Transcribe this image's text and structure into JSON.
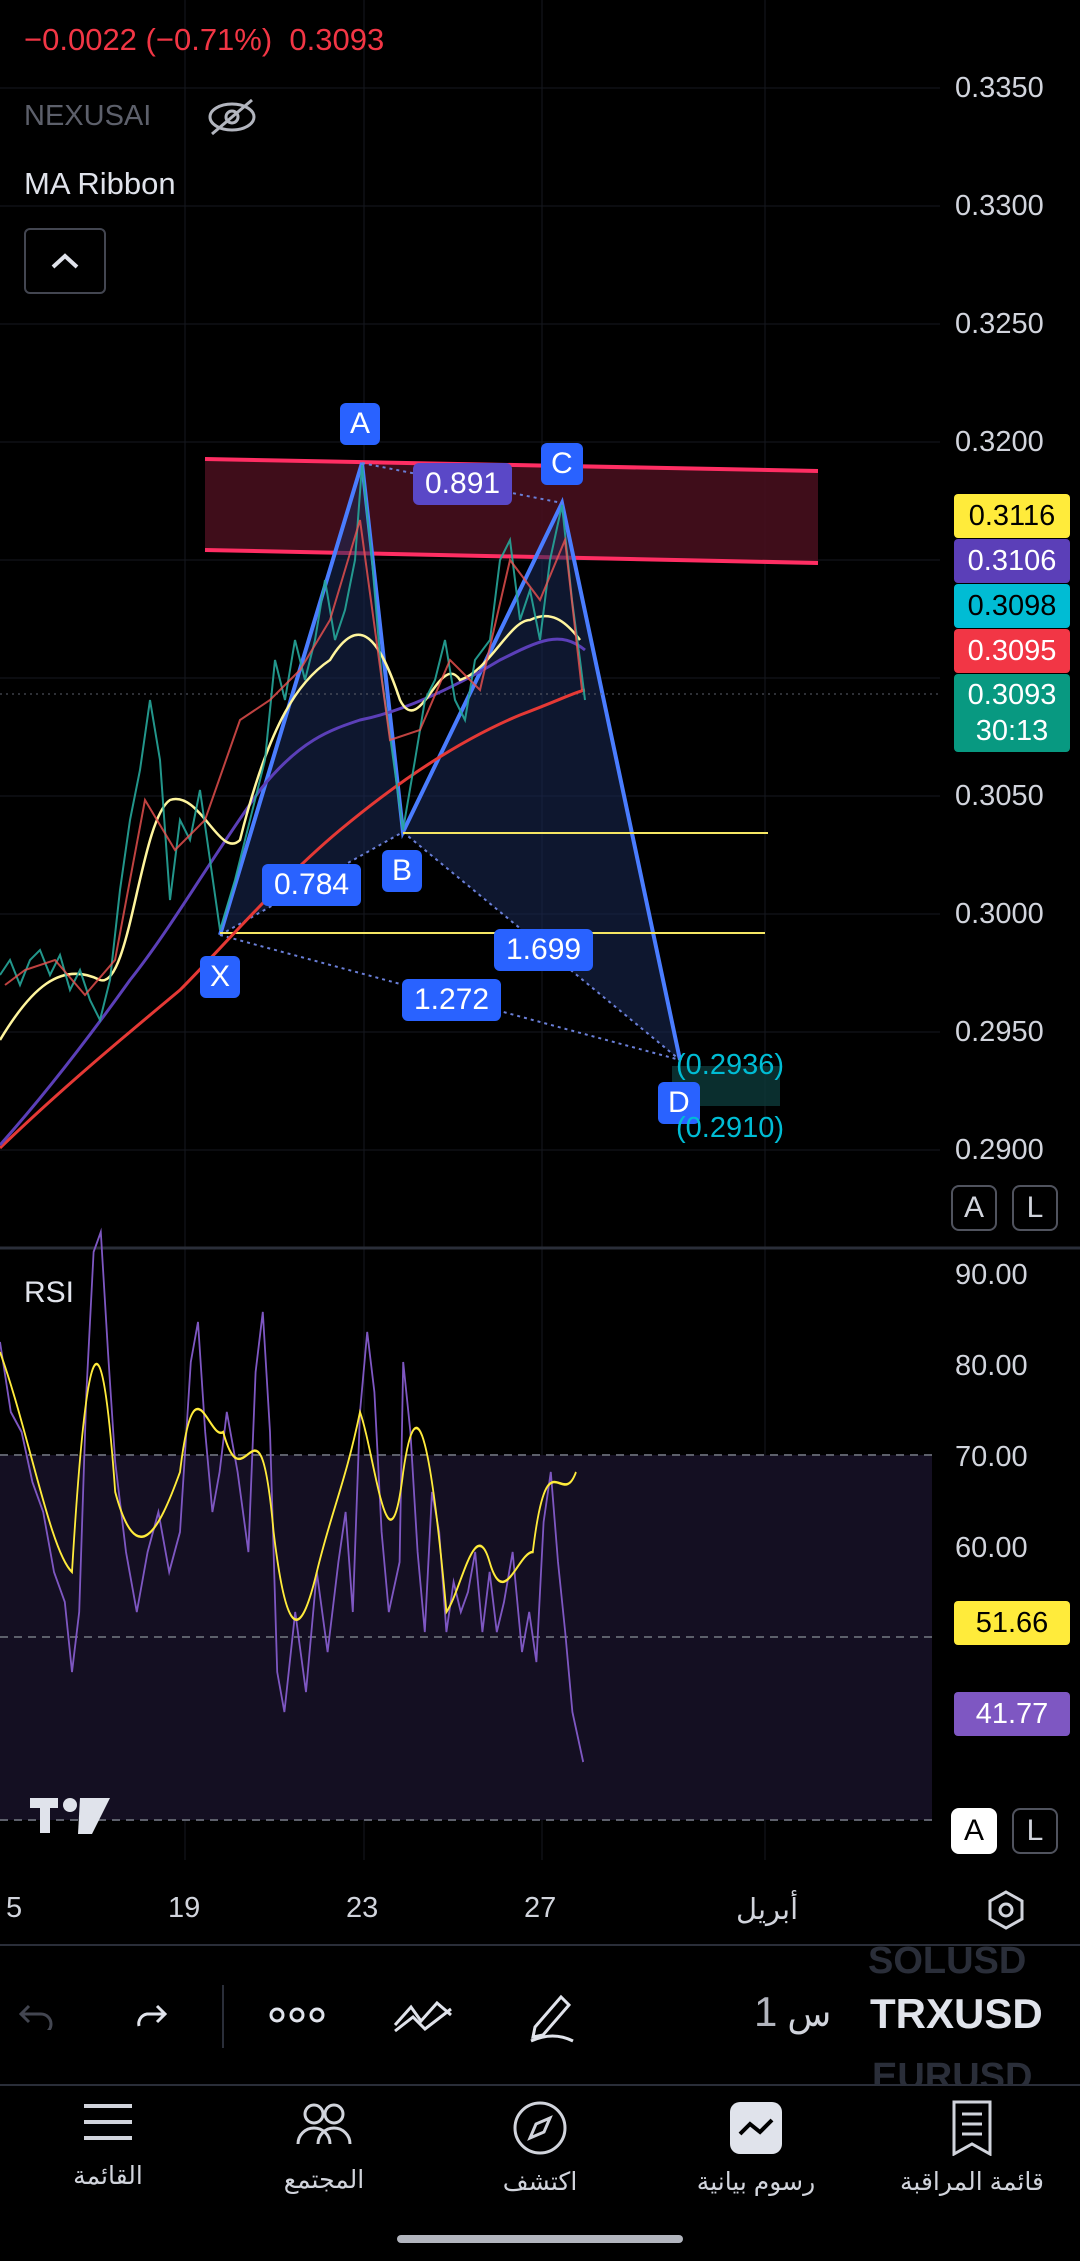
{
  "header": {
    "change_text": "−0.0022 (−0.71%)",
    "price_text": "0.3093",
    "indicator_source": "NEXUSAI",
    "indicator_name": "MA Ribbon",
    "collapse_icon": "chevron-up-icon",
    "visibility_icon": "eye-off-icon"
  },
  "price_axis": {
    "labels": [
      "0.3350",
      "0.3300",
      "0.3250",
      "0.3200",
      "0.3050",
      "0.3000",
      "0.2950",
      "0.2900"
    ],
    "tags": [
      {
        "value": "0.3116",
        "bg": "#ffeb3b",
        "fg": "#000000"
      },
      {
        "value": "0.3106",
        "bg": "#5b3fb8",
        "fg": "#ffffff"
      },
      {
        "value": "0.3098",
        "bg": "#00bcd4",
        "fg": "#000000"
      },
      {
        "value": "0.3095",
        "bg": "#f23645",
        "fg": "#ffffff"
      }
    ],
    "last_price": {
      "value": "0.3093",
      "countdown": "30:13",
      "bg": "#089981"
    },
    "auto_btn": "A",
    "log_btn": "L"
  },
  "pattern": {
    "points": [
      "X",
      "A",
      "B",
      "C",
      "D"
    ],
    "ratios": {
      "xab": "0.784",
      "abc": "0.891",
      "bcd": "1.699",
      "xad": "1.272"
    },
    "targets": [
      "(0.2936)",
      "(0.2910)"
    ]
  },
  "rsi": {
    "title": "RSI",
    "labels": [
      "90.00",
      "80.00",
      "70.00",
      "60.00"
    ],
    "rsi_value": "41.77",
    "ma_value": "51.66",
    "rsi_color": "#7e57c2",
    "ma_color": "#ffeb3b",
    "auto_btn": "A",
    "log_btn": "L"
  },
  "time_axis": {
    "labels": [
      "5",
      "19",
      "23",
      "27",
      "أبريل"
    ],
    "settings_icon": "hexagon-settings-icon"
  },
  "toolbar": {
    "undo_icon": "undo-icon",
    "redo_icon": "redo-icon",
    "more_icon": "more-dots-icon",
    "drawings_icon": "drawings-icon",
    "pencil_icon": "pencil-icon",
    "interval_num": "1",
    "interval_unit": "س",
    "symbol": "TRXUSD",
    "symbol_prev": "SOLUSD",
    "symbol_next": "EURUSD"
  },
  "bottom_nav": [
    {
      "label": "القائمة",
      "icon": "menu-icon"
    },
    {
      "label": "المجتمع",
      "icon": "community-icon"
    },
    {
      "label": "اكتشف",
      "icon": "compass-icon"
    },
    {
      "label": "رسوم بيانية",
      "icon": "chart-icon"
    },
    {
      "label": "قائمة المراقبة",
      "icon": "watchlist-icon"
    }
  ],
  "watermark": "TV"
}
